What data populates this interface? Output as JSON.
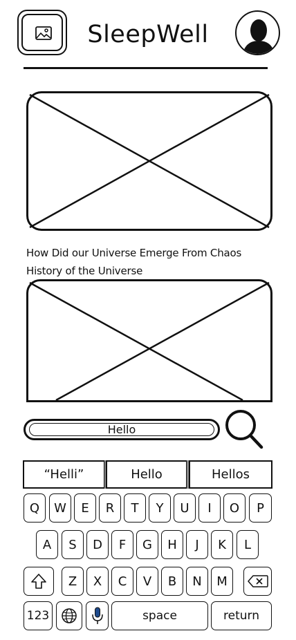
{
  "header": {
    "title": "SleepWell",
    "logo_icon": "image-icon",
    "avatar_icon": "user-silhouette-icon"
  },
  "content": {
    "caption_1": "How Did our Universe Emerge From Chaos",
    "caption_2": "History of the Universe"
  },
  "search": {
    "value": "Hello",
    "icon": "search-icon"
  },
  "keyboard": {
    "suggestions": [
      "“Helli”",
      "Hello",
      "Hellos"
    ],
    "row1": [
      "Q",
      "W",
      "E",
      "R",
      "T",
      "Y",
      "U",
      "I",
      "O",
      "P"
    ],
    "row2": [
      "A",
      "S",
      "D",
      "F",
      "G",
      "H",
      "J",
      "K",
      "L"
    ],
    "row3": [
      "Z",
      "X",
      "C",
      "V",
      "B",
      "N",
      "M"
    ],
    "numbers_label": "123",
    "space_label": "space",
    "return_label": "return",
    "shift_icon": "shift-icon",
    "backspace_icon": "backspace-icon",
    "globe_icon": "globe-icon",
    "mic_icon": "microphone-icon"
  }
}
